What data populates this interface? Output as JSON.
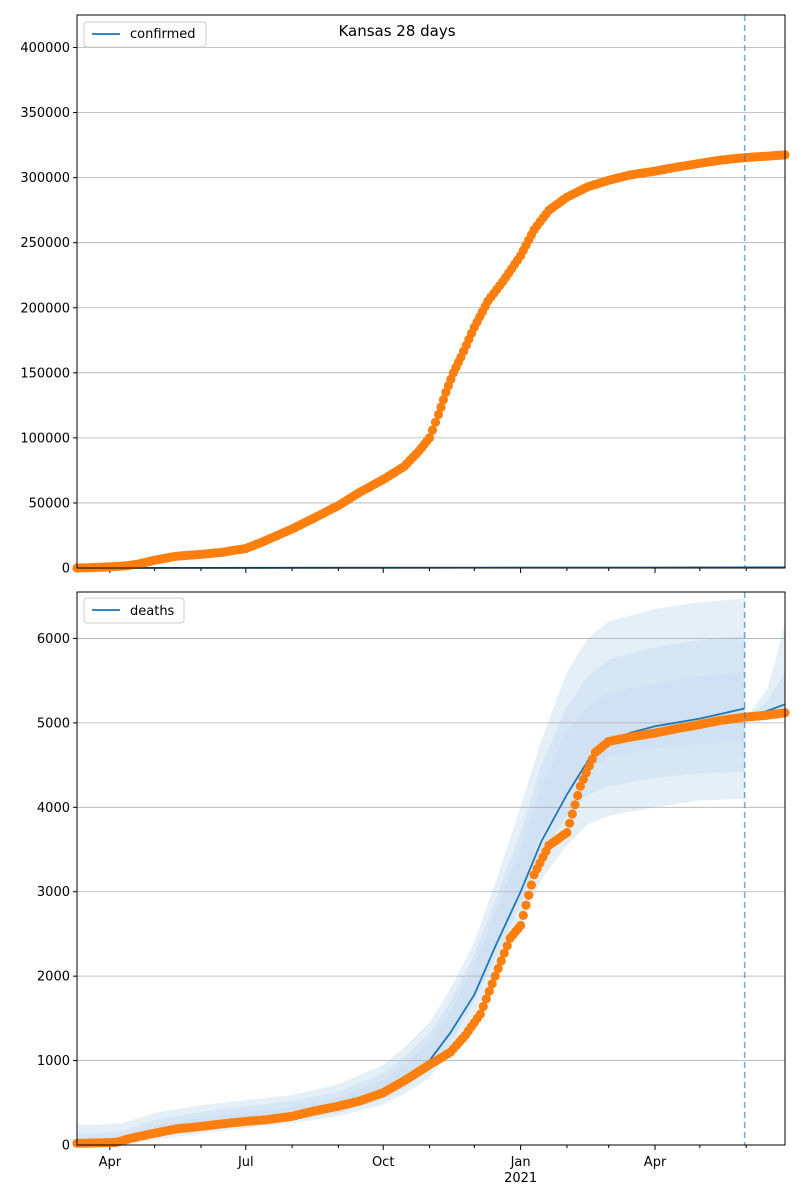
{
  "figure": {
    "title": "Kansas 28 days"
  },
  "colors": {
    "model": "#1f77b4",
    "observed": "#ff7f0e",
    "band": "#c6dbef",
    "grid": "#b0b0b0",
    "vline": "#1f77b4"
  },
  "chart_data": [
    {
      "type": "line",
      "title": "Kansas 28 days",
      "legend": [
        "confirmed"
      ],
      "legend_position": "top-left",
      "grid": "horizontal",
      "xlim": [
        "2020-03-10",
        "2021-06-27"
      ],
      "ylim": [
        0,
        425000
      ],
      "yticks": [
        0,
        50000,
        100000,
        150000,
        200000,
        250000,
        300000,
        350000,
        400000
      ],
      "ytick_labels": [
        "0",
        "50000",
        "100000",
        "150000",
        "200000",
        "250000",
        "300000",
        "350000",
        "400000"
      ],
      "vline_date": "2021-05-31",
      "series": [
        {
          "name": "confirmed",
          "kind": "model-line",
          "x": [
            "2020-03-10",
            "2020-06-01",
            "2020-09-01",
            "2020-12-01",
            "2021-03-01",
            "2021-06-27"
          ],
          "y": [
            0,
            100,
            200,
            300,
            400,
            500
          ]
        },
        {
          "kind": "observed",
          "x": [
            "2020-03-10",
            "2020-03-25",
            "2020-04-10",
            "2020-04-20",
            "2020-05-01",
            "2020-05-15",
            "2020-06-01",
            "2020-06-15",
            "2020-07-01",
            "2020-07-10",
            "2020-07-20",
            "2020-08-01",
            "2020-08-15",
            "2020-09-01",
            "2020-09-15",
            "2020-10-01",
            "2020-10-15",
            "2020-10-25",
            "2020-11-01",
            "2020-11-07",
            "2020-11-12",
            "2020-11-17",
            "2020-11-22",
            "2020-12-01",
            "2020-12-10",
            "2020-12-20",
            "2021-01-01",
            "2021-01-10",
            "2021-01-20",
            "2021-02-01",
            "2021-02-15",
            "2021-03-01",
            "2021-03-15",
            "2021-04-01",
            "2021-04-15",
            "2021-05-01",
            "2021-05-15",
            "2021-06-01",
            "2021-06-15",
            "2021-06-27"
          ],
          "y": [
            0,
            500,
            1500,
            3000,
            6000,
            9000,
            10500,
            12000,
            15000,
            19000,
            24000,
            30000,
            38000,
            48000,
            58000,
            68000,
            78000,
            90000,
            100000,
            118000,
            135000,
            150000,
            162000,
            185000,
            205000,
            220000,
            240000,
            260000,
            275000,
            285000,
            293000,
            298000,
            302000,
            305000,
            308000,
            311000,
            313500,
            315500,
            316500,
            317500
          ]
        }
      ]
    },
    {
      "type": "line",
      "legend": [
        "deaths"
      ],
      "legend_position": "top-left",
      "grid": "horizontal",
      "xlim": [
        "2020-03-10",
        "2021-06-27"
      ],
      "ylim": [
        0,
        6550
      ],
      "yticks": [
        0,
        1000,
        2000,
        3000,
        4000,
        5000,
        6000
      ],
      "ytick_labels": [
        "0",
        "1000",
        "2000",
        "3000",
        "4000",
        "5000",
        "6000"
      ],
      "xtick_labels": [
        "Apr",
        "Jul",
        "Oct",
        "Jan",
        "Apr"
      ],
      "xtick_dates": [
        "2020-04-01",
        "2020-07-01",
        "2020-10-01",
        "2021-01-01",
        "2021-04-01"
      ],
      "x_sublabel": "2021",
      "x_sublabel_date": "2021-01-01",
      "vline_date": "2021-05-31",
      "bands": [
        {
          "level": "outer",
          "x": [
            "2020-03-10",
            "2020-03-25",
            "2020-04-10",
            "2020-05-01",
            "2020-06-01",
            "2020-07-01",
            "2020-08-01",
            "2020-09-01",
            "2020-10-01",
            "2020-10-15",
            "2020-11-01",
            "2020-11-15",
            "2020-12-01",
            "2020-12-15",
            "2021-01-01",
            "2021-01-15",
            "2021-02-01",
            "2021-02-15",
            "2021-03-01",
            "2021-04-01",
            "2021-05-01",
            "2021-05-31"
          ],
          "lower": [
            0,
            0,
            0,
            60,
            140,
            200,
            260,
            340,
            480,
            600,
            800,
            1100,
            1550,
            2000,
            2600,
            3150,
            3550,
            3800,
            3900,
            4000,
            4080,
            4100
          ],
          "upper": [
            240,
            240,
            260,
            380,
            470,
            530,
            590,
            720,
            950,
            1150,
            1450,
            1850,
            2400,
            3100,
            4000,
            4800,
            5600,
            6000,
            6200,
            6350,
            6430,
            6470
          ]
        },
        {
          "level": "middle",
          "x": [
            "2020-03-10",
            "2020-03-25",
            "2020-04-10",
            "2020-05-01",
            "2020-06-01",
            "2020-07-01",
            "2020-08-01",
            "2020-09-01",
            "2020-10-01",
            "2020-10-15",
            "2020-11-01",
            "2020-11-15",
            "2020-12-01",
            "2020-12-15",
            "2021-01-01",
            "2021-01-15",
            "2021-02-01",
            "2021-02-15",
            "2021-03-01",
            "2021-04-01",
            "2021-05-01",
            "2021-05-31"
          ],
          "lower": [
            0,
            0,
            10,
            90,
            170,
            230,
            290,
            380,
            540,
            670,
            880,
            1200,
            1700,
            2200,
            2850,
            3450,
            3900,
            4150,
            4250,
            4350,
            4400,
            4420
          ],
          "upper": [
            140,
            140,
            170,
            300,
            390,
            460,
            520,
            630,
            850,
            1040,
            1320,
            1700,
            2250,
            2900,
            3700,
            4500,
            5200,
            5550,
            5750,
            5900,
            5980,
            6030
          ]
        },
        {
          "level": "inner",
          "x": [
            "2020-03-10",
            "2020-03-25",
            "2020-04-10",
            "2020-05-01",
            "2020-06-01",
            "2020-07-01",
            "2020-08-01",
            "2020-09-01",
            "2020-10-01",
            "2020-10-15",
            "2020-11-01",
            "2020-11-15",
            "2020-12-01",
            "2020-12-15",
            "2021-01-01",
            "2021-01-15",
            "2021-02-01",
            "2021-02-15",
            "2021-03-01",
            "2021-04-01",
            "2021-05-01",
            "2021-05-31"
          ],
          "lower": [
            0,
            10,
            40,
            130,
            210,
            270,
            330,
            430,
            600,
            740,
            960,
            1300,
            1820,
            2380,
            3050,
            3700,
            4180,
            4450,
            4600,
            4700,
            4750,
            4780
          ],
          "upper": [
            70,
            80,
            110,
            230,
            320,
            390,
            450,
            560,
            770,
            950,
            1220,
            1580,
            2120,
            2750,
            3500,
            4250,
            4900,
            5200,
            5350,
            5470,
            5550,
            5600
          ]
        },
        {
          "level": "forecast-outer",
          "x": [
            "2021-06-05",
            "2021-06-15",
            "2021-06-20",
            "2021-06-27"
          ],
          "lower": [
            5020,
            5060,
            5100,
            5150
          ],
          "upper": [
            5150,
            5400,
            5700,
            6180
          ]
        },
        {
          "level": "forecast-inner",
          "x": [
            "2021-06-05",
            "2021-06-15",
            "2021-06-20",
            "2021-06-27"
          ],
          "lower": [
            5040,
            5080,
            5120,
            5170
          ],
          "upper": [
            5100,
            5250,
            5400,
            5600
          ]
        }
      ],
      "series": [
        {
          "name": "deaths",
          "kind": "model-line",
          "x": [
            "2020-03-10",
            "2020-04-01",
            "2020-04-15",
            "2020-05-01",
            "2020-06-01",
            "2020-07-01",
            "2020-08-01",
            "2020-09-01",
            "2020-10-01",
            "2020-10-15",
            "2020-11-01",
            "2020-11-15",
            "2020-12-01",
            "2020-12-15",
            "2021-01-01",
            "2021-01-15",
            "2021-02-01",
            "2021-02-15",
            "2021-03-01",
            "2021-03-15",
            "2021-04-01",
            "2021-05-01",
            "2021-05-31"
          ],
          "y": [
            20,
            30,
            70,
            160,
            250,
            300,
            370,
            460,
            640,
            780,
            1000,
            1330,
            1780,
            2350,
            3000,
            3600,
            4150,
            4550,
            4750,
            4880,
            4960,
            5050,
            5170
          ]
        },
        {
          "kind": "model-forecast",
          "x": [
            "2021-06-05",
            "2021-06-15",
            "2021-06-27"
          ],
          "y": [
            5080,
            5140,
            5220
          ]
        },
        {
          "kind": "observed",
          "x": [
            "2020-03-10",
            "2020-03-25",
            "2020-04-05",
            "2020-04-15",
            "2020-05-01",
            "2020-05-15",
            "2020-06-01",
            "2020-06-15",
            "2020-07-01",
            "2020-07-15",
            "2020-08-01",
            "2020-08-15",
            "2020-09-01",
            "2020-09-15",
            "2020-10-01",
            "2020-10-15",
            "2020-11-01",
            "2020-11-15",
            "2020-11-25",
            "2020-12-05",
            "2020-12-15",
            "2020-12-25",
            "2021-01-01",
            "2021-01-10",
            "2021-01-20",
            "2021-02-01",
            "2021-02-10",
            "2021-02-20",
            "2021-03-01",
            "2021-03-15",
            "2021-04-01",
            "2021-04-15",
            "2021-05-01",
            "2021-05-15",
            "2021-06-01",
            "2021-06-15",
            "2021-06-27"
          ],
          "y": [
            20,
            25,
            30,
            80,
            140,
            190,
            220,
            250,
            280,
            300,
            340,
            400,
            460,
            520,
            620,
            760,
            950,
            1100,
            1300,
            1550,
            2000,
            2450,
            2600,
            3200,
            3550,
            3700,
            4250,
            4650,
            4780,
            4830,
            4880,
            4930,
            4980,
            5030,
            5070,
            5090,
            5120
          ]
        }
      ]
    }
  ]
}
